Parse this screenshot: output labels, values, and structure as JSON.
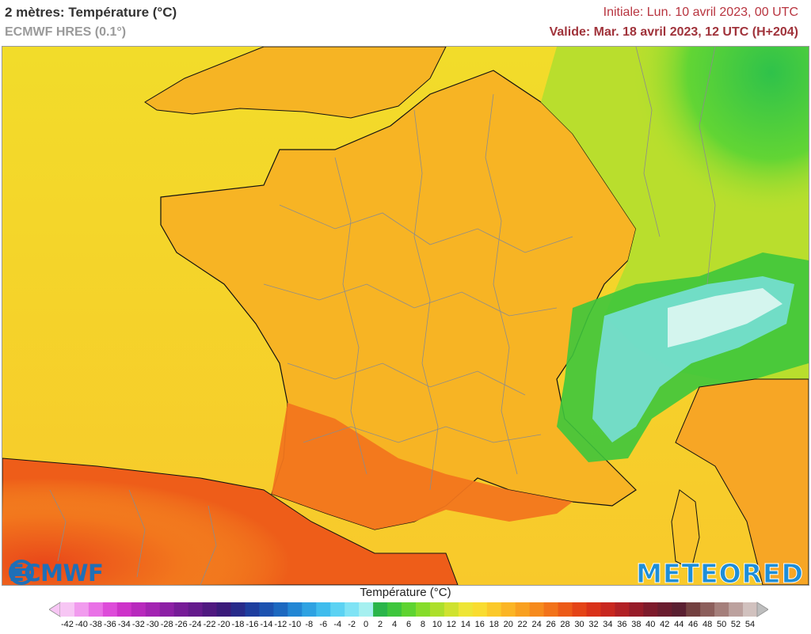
{
  "header": {
    "title": "2 mètres: Température (°C)",
    "model": "ECMWF HRES (0.1°)",
    "initial": "Initiale: Lun. 10 avril 2023, 00 UTC",
    "valid": "Valide: Mar. 18 avril 2023, 12 UTC (H+204)"
  },
  "logos": {
    "left": "ECMWF",
    "right": "METEORED"
  },
  "legend": {
    "title": "Température (°C)",
    "ticks": [
      "-42",
      "-40",
      "-38",
      "-36",
      "-34",
      "-32",
      "-30",
      "-28",
      "-26",
      "-24",
      "-22",
      "-20",
      "-18",
      "-16",
      "-14",
      "-12",
      "-10",
      "-8",
      "-6",
      "-4",
      "-2",
      "0",
      "2",
      "4",
      "6",
      "8",
      "10",
      "12",
      "14",
      "16",
      "18",
      "20",
      "22",
      "24",
      "26",
      "28",
      "30",
      "32",
      "34",
      "36",
      "38",
      "40",
      "42",
      "44",
      "46",
      "48",
      "50",
      "52",
      "54"
    ],
    "colors": [
      "#f7c6f4",
      "#f19bee",
      "#e971e6",
      "#dd4bd9",
      "#cd32c9",
      "#b829bd",
      "#a323b2",
      "#8c1fa5",
      "#761b97",
      "#641a8c",
      "#4f1880",
      "#3a1a7a",
      "#272a8a",
      "#1d3d9e",
      "#1c52b0",
      "#1c68c0",
      "#2286d4",
      "#2ea2e2",
      "#3fbced",
      "#5bd2f3",
      "#7fe3f5",
      "#a6f0f0",
      "#2ab54a",
      "#3ec63c",
      "#5ed330",
      "#86dc2a",
      "#acdf2a",
      "#cfe22e",
      "#eee535",
      "#f9dc2f",
      "#fbc929",
      "#fbb524",
      "#f9a01f",
      "#f68a1c",
      "#f27219",
      "#ec5a17",
      "#e44316",
      "#d93118",
      "#c8261e",
      "#b11f24",
      "#961b28",
      "#7d1a2b",
      "#6a1c2e",
      "#5a1f31",
      "#734040",
      "#8c5e5b",
      "#a57f7b",
      "#bca19e",
      "#d1c1be"
    ]
  },
  "map": {
    "colors": {
      "sea_cool": "#f4e02a",
      "sea_warm": "#f7c92a",
      "land_warm": "#f7b324",
      "land_hot": "#f27a1d",
      "land_very_hot": "#ec5517",
      "cool_green": "#49cf3a",
      "cold_alps": "#3fbced",
      "snow": "#ffffff",
      "border": "#8c8c8c",
      "coast": "#111111"
    }
  }
}
